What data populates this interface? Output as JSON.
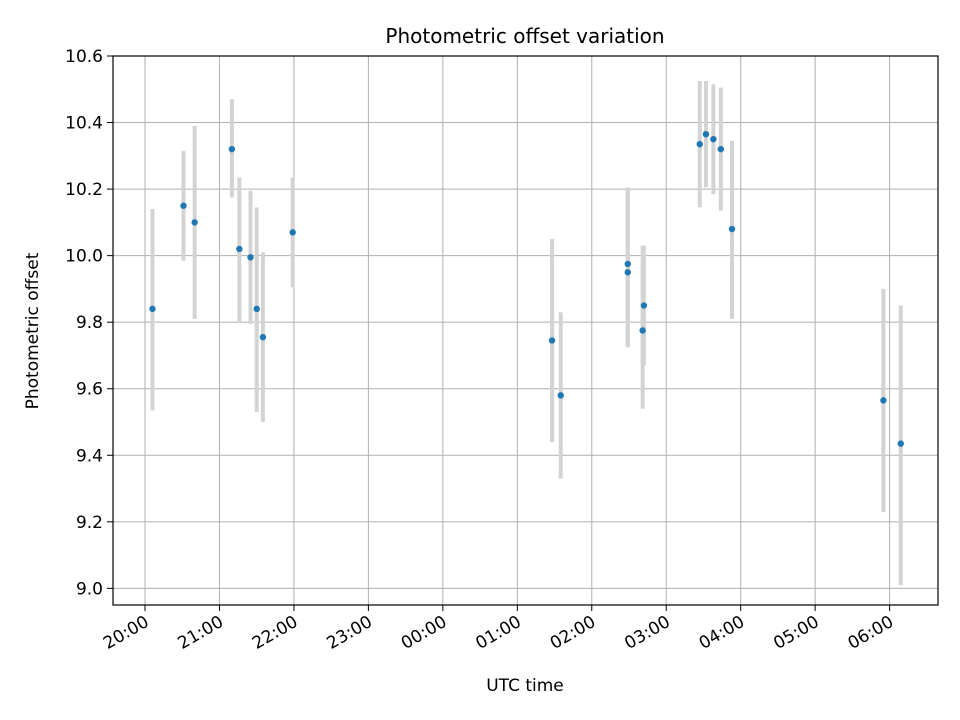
{
  "chart_data": {
    "type": "scatter",
    "title": "Photometric offset variation",
    "xlabel": "UTC time",
    "ylabel": "Photometric offset",
    "ylim": [
      8.95,
      10.6
    ],
    "xlim_hours": [
      19.57,
      30.65
    ],
    "grid": true,
    "colors": {
      "point": "#1f77b4",
      "errorbar": "#d3d3d3",
      "grid": "#b0b0b0",
      "axes": "#000000"
    },
    "x_ticks": [
      {
        "value": 20,
        "label": "20:00"
      },
      {
        "value": 21,
        "label": "21:00"
      },
      {
        "value": 22,
        "label": "22:00"
      },
      {
        "value": 23,
        "label": "23:00"
      },
      {
        "value": 24,
        "label": "00:00"
      },
      {
        "value": 25,
        "label": "01:00"
      },
      {
        "value": 26,
        "label": "02:00"
      },
      {
        "value": 27,
        "label": "03:00"
      },
      {
        "value": 28,
        "label": "04:00"
      },
      {
        "value": 29,
        "label": "05:00"
      },
      {
        "value": 30,
        "label": "06:00"
      }
    ],
    "y_ticks": [
      9.0,
      9.2,
      9.4,
      9.6,
      9.8,
      10.0,
      10.2,
      10.4,
      10.6
    ],
    "y_tick_labels": [
      "9.0",
      "9.2",
      "9.4",
      "9.6",
      "9.8",
      "10.0",
      "10.2",
      "10.4",
      "10.6"
    ],
    "points": [
      {
        "x": "20:06",
        "y": 9.84,
        "lo": 9.535,
        "hi": 10.14
      },
      {
        "x": "20:31",
        "y": 10.15,
        "lo": 9.985,
        "hi": 10.315
      },
      {
        "x": "20:40",
        "y": 10.1,
        "lo": 9.81,
        "hi": 10.39
      },
      {
        "x": "21:10",
        "y": 10.32,
        "lo": 10.175,
        "hi": 10.47
      },
      {
        "x": "21:16",
        "y": 10.02,
        "lo": 9.8,
        "hi": 10.235
      },
      {
        "x": "21:25",
        "y": 9.995,
        "lo": 9.795,
        "hi": 10.195
      },
      {
        "x": "21:30",
        "y": 9.84,
        "lo": 9.53,
        "hi": 10.145
      },
      {
        "x": "21:35",
        "y": 9.755,
        "lo": 9.5,
        "hi": 10.01
      },
      {
        "x": "21:59",
        "y": 10.07,
        "lo": 9.905,
        "hi": 10.235
      },
      {
        "x": "01:28",
        "y": 9.745,
        "lo": 9.44,
        "hi": 10.05
      },
      {
        "x": "01:35",
        "y": 9.58,
        "lo": 9.33,
        "hi": 9.83
      },
      {
        "x": "02:29",
        "y": 9.975,
        "lo": 9.725,
        "hi": 10.205
      },
      {
        "x": "02:29",
        "y": 9.95,
        "lo": 9.725,
        "hi": 10.205
      },
      {
        "x": "02:41",
        "y": 9.775,
        "lo": 9.54,
        "hi": 10.03
      },
      {
        "x": "02:42",
        "y": 9.85,
        "lo": 9.67,
        "hi": 10.03
      },
      {
        "x": "03:27",
        "y": 10.335,
        "lo": 10.145,
        "hi": 10.525
      },
      {
        "x": "03:32",
        "y": 10.365,
        "lo": 10.205,
        "hi": 10.525
      },
      {
        "x": "03:38",
        "y": 10.35,
        "lo": 10.185,
        "hi": 10.515
      },
      {
        "x": "03:44",
        "y": 10.32,
        "lo": 10.135,
        "hi": 10.505
      },
      {
        "x": "03:53",
        "y": 10.08,
        "lo": 9.81,
        "hi": 10.345
      },
      {
        "x": "05:55",
        "y": 9.565,
        "lo": 9.23,
        "hi": 9.9
      },
      {
        "x": "06:09",
        "y": 9.435,
        "lo": 9.01,
        "hi": 9.85
      }
    ]
  }
}
